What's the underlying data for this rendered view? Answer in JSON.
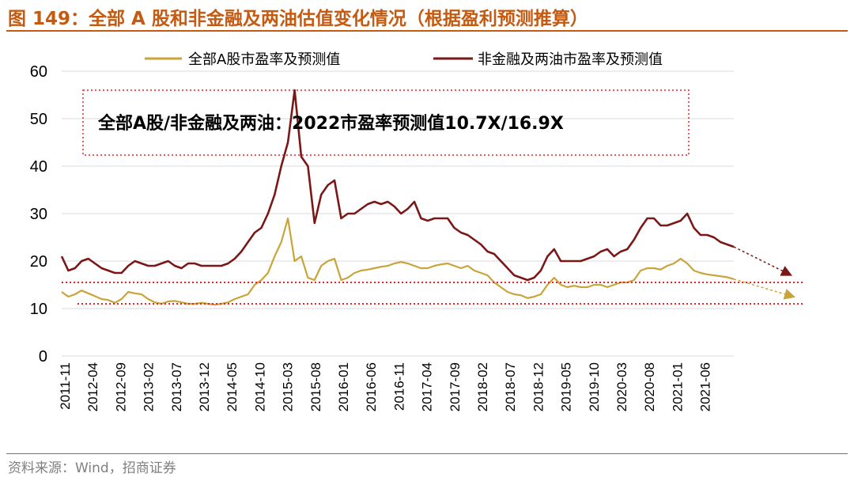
{
  "page": {
    "title": "图 149：全部 A 股和非金融及两油估值变化情况（根据盈利预测推算）",
    "source": "资料来源：Wind，招商证券"
  },
  "chart_data": {
    "type": "line",
    "title": "全部A股和非金融及两油估值变化情况（根据盈利预测推算）",
    "xlabel": "",
    "ylabel": "",
    "ylim": [
      0,
      60
    ],
    "yticks": [
      0,
      10,
      20,
      30,
      40,
      50,
      60
    ],
    "grid": true,
    "legend_position": "top",
    "xtick_labels": [
      "2011-11",
      "2012-04",
      "2012-09",
      "2013-02",
      "2013-07",
      "2013-12",
      "2014-05",
      "2014-10",
      "2015-03",
      "2015-08",
      "2016-01",
      "2016-06",
      "2016-11",
      "2017-04",
      "2017-09",
      "2018-02",
      "2018-07",
      "2018-12",
      "2019-05",
      "2019-10",
      "2020-03",
      "2020-08",
      "2021-01",
      "2021-06"
    ],
    "series": [
      {
        "name": "全部A股市盈率及预测值",
        "color": "#c9a43a",
        "points": [
          [
            0,
            13.5
          ],
          [
            1,
            12.5
          ],
          [
            2,
            13.0
          ],
          [
            3,
            13.8
          ],
          [
            4,
            13.2
          ],
          [
            5,
            12.6
          ],
          [
            6,
            12.0
          ],
          [
            7,
            11.8
          ],
          [
            8,
            11.2
          ],
          [
            9,
            12.0
          ],
          [
            10,
            13.5
          ],
          [
            11,
            13.2
          ],
          [
            12,
            13.0
          ],
          [
            13,
            12.0
          ],
          [
            14,
            11.3
          ],
          [
            15,
            11.0
          ],
          [
            16,
            11.5
          ],
          [
            17,
            11.6
          ],
          [
            18,
            11.3
          ],
          [
            19,
            11.0
          ],
          [
            20,
            11.0
          ],
          [
            21,
            11.2
          ],
          [
            22,
            11.0
          ],
          [
            23,
            10.8
          ],
          [
            24,
            11.0
          ],
          [
            25,
            11.3
          ],
          [
            26,
            12.0
          ],
          [
            27,
            12.5
          ],
          [
            28,
            13.0
          ],
          [
            29,
            15.0
          ],
          [
            30,
            16.0
          ],
          [
            31,
            17.5
          ],
          [
            32,
            21.0
          ],
          [
            33,
            24.0
          ],
          [
            34,
            29.0
          ],
          [
            35,
            20.0
          ],
          [
            36,
            21.0
          ],
          [
            37,
            16.5
          ],
          [
            38,
            16.0
          ],
          [
            39,
            19.0
          ],
          [
            40,
            20.0
          ],
          [
            41,
            20.5
          ],
          [
            42,
            16.0
          ],
          [
            43,
            16.5
          ],
          [
            44,
            17.5
          ],
          [
            45,
            18.0
          ],
          [
            46,
            18.2
          ],
          [
            47,
            18.5
          ],
          [
            48,
            18.8
          ],
          [
            49,
            19.0
          ],
          [
            50,
            19.5
          ],
          [
            51,
            19.8
          ],
          [
            52,
            19.5
          ],
          [
            53,
            19.0
          ],
          [
            54,
            18.5
          ],
          [
            55,
            18.5
          ],
          [
            56,
            19.0
          ],
          [
            57,
            19.3
          ],
          [
            58,
            19.5
          ],
          [
            59,
            19.0
          ],
          [
            60,
            18.5
          ],
          [
            61,
            19.0
          ],
          [
            62,
            18.0
          ],
          [
            63,
            17.5
          ],
          [
            64,
            17.0
          ],
          [
            65,
            15.5
          ],
          [
            66,
            14.5
          ],
          [
            67,
            13.5
          ],
          [
            68,
            13.0
          ],
          [
            69,
            12.8
          ],
          [
            70,
            12.2
          ],
          [
            71,
            12.5
          ],
          [
            72,
            13.0
          ],
          [
            73,
            15.0
          ],
          [
            74,
            16.5
          ],
          [
            75,
            15.0
          ],
          [
            76,
            14.5
          ],
          [
            77,
            14.8
          ],
          [
            78,
            14.5
          ],
          [
            79,
            14.5
          ],
          [
            80,
            15.0
          ],
          [
            81,
            15.0
          ],
          [
            82,
            14.5
          ],
          [
            83,
            15.0
          ],
          [
            84,
            15.5
          ],
          [
            85,
            15.5
          ],
          [
            86,
            16.0
          ],
          [
            87,
            18.0
          ],
          [
            88,
            18.5
          ],
          [
            89,
            18.5
          ],
          [
            90,
            18.2
          ],
          [
            91,
            19.0
          ],
          [
            92,
            19.5
          ],
          [
            93,
            20.5
          ],
          [
            94,
            19.5
          ],
          [
            95,
            18.0
          ],
          [
            96,
            17.5
          ],
          [
            97,
            17.2
          ],
          [
            98,
            17.0
          ],
          [
            99,
            16.8
          ],
          [
            100,
            16.6
          ],
          [
            101,
            16.2
          ]
        ]
      },
      {
        "name": "非金融及两油市盈率及预测值",
        "color": "#7a1818",
        "points": [
          [
            0,
            21.0
          ],
          [
            1,
            18.0
          ],
          [
            2,
            18.5
          ],
          [
            3,
            20.0
          ],
          [
            4,
            20.5
          ],
          [
            5,
            19.5
          ],
          [
            6,
            18.5
          ],
          [
            7,
            18.0
          ],
          [
            8,
            17.5
          ],
          [
            9,
            17.5
          ],
          [
            10,
            19.0
          ],
          [
            11,
            20.0
          ],
          [
            12,
            19.5
          ],
          [
            13,
            19.0
          ],
          [
            14,
            19.0
          ],
          [
            15,
            19.5
          ],
          [
            16,
            20.0
          ],
          [
            17,
            19.0
          ],
          [
            18,
            18.5
          ],
          [
            19,
            19.5
          ],
          [
            20,
            19.5
          ],
          [
            21,
            19.0
          ],
          [
            22,
            19.0
          ],
          [
            23,
            19.0
          ],
          [
            24,
            19.0
          ],
          [
            25,
            19.5
          ],
          [
            26,
            20.5
          ],
          [
            27,
            22.0
          ],
          [
            28,
            24.0
          ],
          [
            29,
            26.0
          ],
          [
            30,
            27.0
          ],
          [
            31,
            30.0
          ],
          [
            32,
            34.0
          ],
          [
            33,
            40.0
          ],
          [
            34,
            45.0
          ],
          [
            35,
            56.0
          ],
          [
            36,
            42.0
          ],
          [
            37,
            40.0
          ],
          [
            38,
            28.0
          ],
          [
            39,
            34.0
          ],
          [
            40,
            36.0
          ],
          [
            41,
            37.0
          ],
          [
            42,
            29.0
          ],
          [
            43,
            30.0
          ],
          [
            44,
            30.0
          ],
          [
            45,
            31.0
          ],
          [
            46,
            32.0
          ],
          [
            47,
            32.5
          ],
          [
            48,
            32.0
          ],
          [
            49,
            32.5
          ],
          [
            50,
            31.5
          ],
          [
            51,
            30.0
          ],
          [
            52,
            31.0
          ],
          [
            53,
            32.5
          ],
          [
            54,
            29.0
          ],
          [
            55,
            28.5
          ],
          [
            56,
            29.0
          ],
          [
            57,
            29.0
          ],
          [
            58,
            29.0
          ],
          [
            59,
            27.0
          ],
          [
            60,
            26.0
          ],
          [
            61,
            25.5
          ],
          [
            62,
            24.5
          ],
          [
            63,
            23.5
          ],
          [
            64,
            22.0
          ],
          [
            65,
            21.5
          ],
          [
            66,
            20.0
          ],
          [
            67,
            18.5
          ],
          [
            68,
            17.0
          ],
          [
            69,
            16.5
          ],
          [
            70,
            16.0
          ],
          [
            71,
            16.5
          ],
          [
            72,
            18.0
          ],
          [
            73,
            21.0
          ],
          [
            74,
            22.5
          ],
          [
            75,
            20.0
          ],
          [
            76,
            20.0
          ],
          [
            77,
            20.0
          ],
          [
            78,
            20.0
          ],
          [
            79,
            20.5
          ],
          [
            80,
            21.0
          ],
          [
            81,
            22.0
          ],
          [
            82,
            22.5
          ],
          [
            83,
            21.0
          ],
          [
            84,
            22.0
          ],
          [
            85,
            22.5
          ],
          [
            86,
            24.5
          ],
          [
            87,
            27.0
          ],
          [
            88,
            29.0
          ],
          [
            89,
            29.0
          ],
          [
            90,
            27.5
          ],
          [
            91,
            27.5
          ],
          [
            92,
            28.0
          ],
          [
            93,
            28.5
          ],
          [
            94,
            30.0
          ],
          [
            95,
            27.0
          ],
          [
            96,
            25.5
          ],
          [
            97,
            25.5
          ],
          [
            98,
            25.0
          ],
          [
            99,
            24.0
          ],
          [
            100,
            23.5
          ],
          [
            101,
            23.0
          ]
        ]
      }
    ],
    "annotation": "全部A股/非金融及两油：2022市盈率预测值10.7X/16.9X",
    "projection": {
      "all_a_end": 10.7,
      "non_fin_end": 16.9,
      "all_a_reference_line": 11.0,
      "non_fin_reference_line": 15.5
    }
  }
}
